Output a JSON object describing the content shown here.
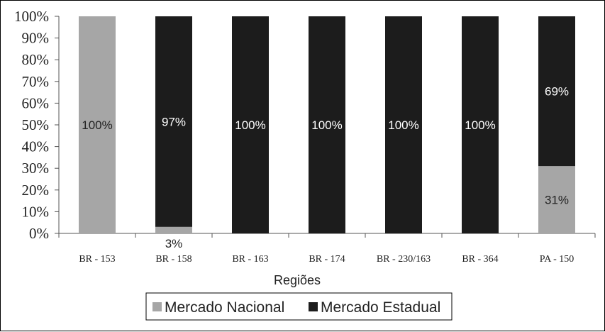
{
  "chart_data": {
    "type": "bar",
    "stacked": true,
    "categories": [
      "BR - 153",
      "BR - 158",
      "BR - 163",
      "BR - 174",
      "BR - 230/163",
      "BR - 364",
      "PA - 150"
    ],
    "series": [
      {
        "name": "Mercado Nacional",
        "color": "#a6a6a6",
        "values": [
          100,
          3,
          0,
          0,
          0,
          0,
          31
        ],
        "labels": [
          "100%",
          "3%",
          "",
          "",
          "",
          "",
          "31%"
        ]
      },
      {
        "name": "Mercado Estadual",
        "color": "#1c1c1c",
        "values": [
          0,
          97,
          100,
          100,
          100,
          100,
          69
        ],
        "labels": [
          "",
          "97%",
          "100%",
          "100%",
          "100%",
          "100%",
          "69%"
        ]
      }
    ],
    "yticks": [
      "0%",
      "10%",
      "20%",
      "30%",
      "40%",
      "50%",
      "60%",
      "70%",
      "80%",
      "90%",
      "100%"
    ],
    "ylim": [
      0,
      100
    ],
    "xlabel": "Regiões",
    "ylabel": "",
    "legend_position": "bottom",
    "grid": false
  }
}
